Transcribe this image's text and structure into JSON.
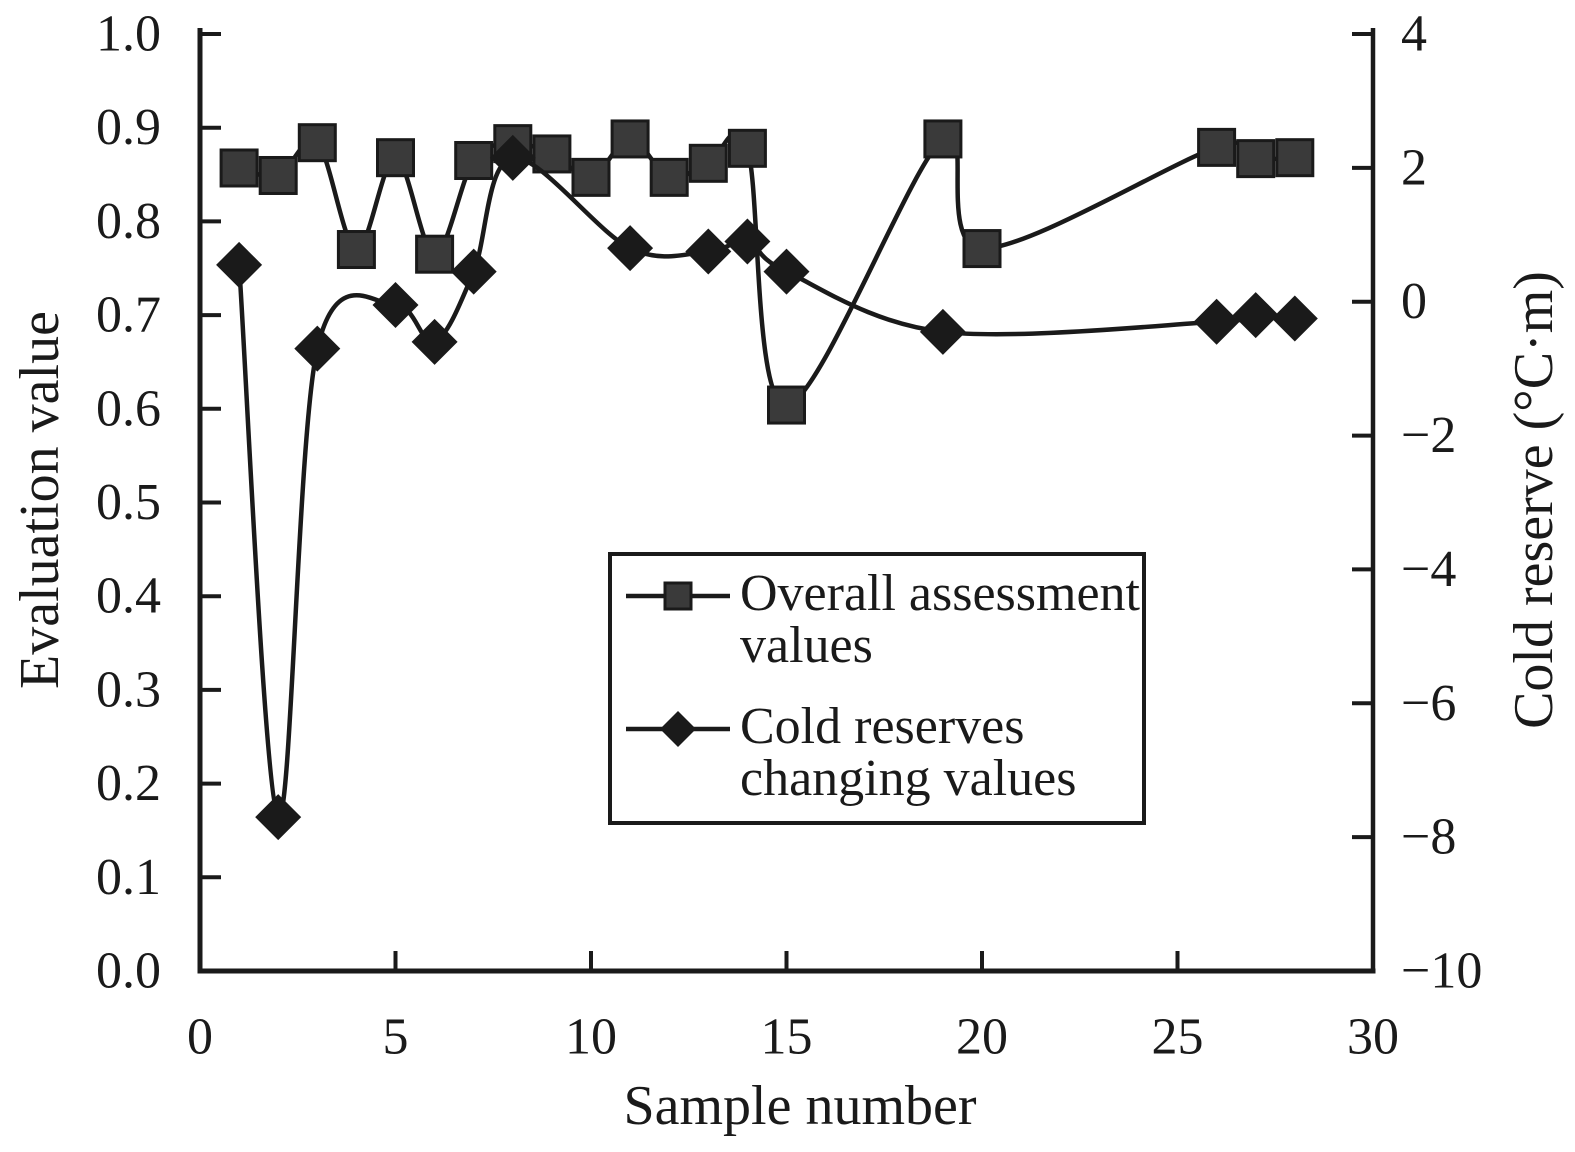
{
  "figure": {
    "background": "#ffffff",
    "ink_color": "#1a1a1a",
    "marker_gray": "#3a3a3a"
  },
  "chart_data": {
    "type": "line",
    "title": "",
    "xlabel": "Sample number",
    "ylabel_left": "Evaluation value",
    "ylabel_right": "Cold reserve (°C·m)",
    "xlim": [
      0,
      30
    ],
    "ylim_left": [
      0.0,
      1.0
    ],
    "ylim_right": [
      -10,
      4
    ],
    "x_ticks": [
      "0",
      "5",
      "10",
      "15",
      "20",
      "25",
      "30"
    ],
    "y_ticks_left": [
      "0.0",
      "0.1",
      "0.2",
      "0.3",
      "0.4",
      "0.5",
      "0.6",
      "0.7",
      "0.8",
      "0.9",
      "1.0"
    ],
    "y_ticks_right": [
      "4",
      "2",
      "0",
      "−2",
      "−4",
      "−6",
      "−8",
      "−10"
    ],
    "grid": false,
    "legend_position": "center",
    "series": [
      {
        "name": "Overall assessment values",
        "axis": "left",
        "marker": "square",
        "marker_fill": "#3a3a3a",
        "line_color": "#1a1a1a",
        "x": [
          1,
          2,
          3,
          4,
          5,
          6,
          7,
          8,
          9,
          10,
          11,
          12,
          13,
          14,
          15,
          19,
          20,
          26,
          27,
          28
        ],
        "y": [
          0.857,
          0.849,
          0.884,
          0.77,
          0.868,
          0.765,
          0.865,
          0.883,
          0.872,
          0.847,
          0.888,
          0.847,
          0.862,
          0.878,
          0.604,
          0.888,
          0.771,
          0.879,
          0.867,
          0.868
        ]
      },
      {
        "name": "Cold reserves changing values",
        "axis": "right",
        "marker": "diamond",
        "marker_fill": "#1a1a1a",
        "line_color": "#1a1a1a",
        "x": [
          1,
          2,
          3,
          5,
          6,
          7,
          8,
          11,
          13,
          14,
          15,
          19,
          26,
          27,
          28
        ],
        "y": [
          0.55,
          -7.7,
          -0.7,
          -0.05,
          -0.6,
          0.45,
          2.15,
          0.8,
          0.75,
          0.9,
          0.45,
          -0.45,
          -0.3,
          -0.2,
          -0.25
        ]
      }
    ],
    "legend": {
      "entries": [
        {
          "label": "Overall assessment values",
          "marker": "square"
        },
        {
          "label": "Cold reserves changing values",
          "marker": "diamond"
        }
      ]
    }
  }
}
